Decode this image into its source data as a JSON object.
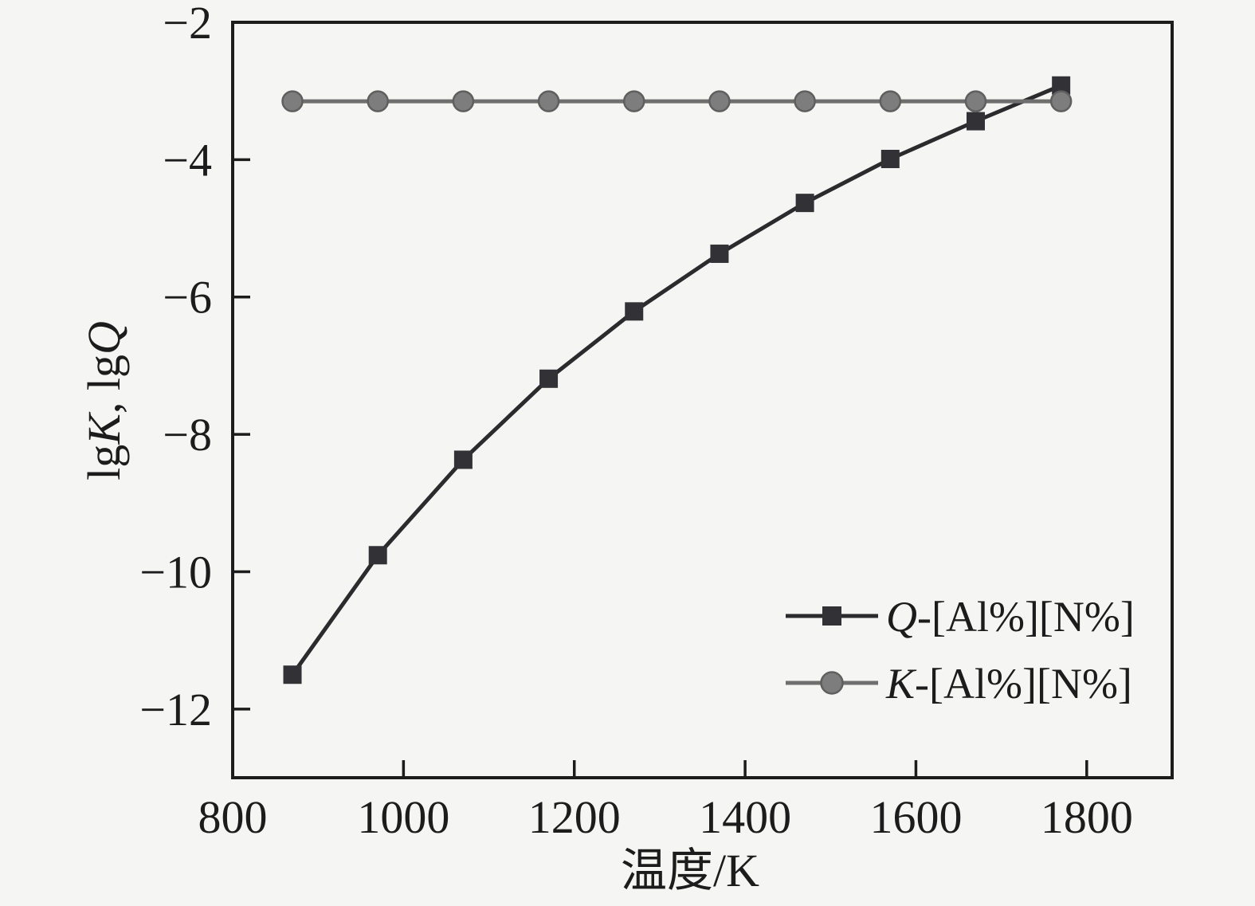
{
  "figure": {
    "kind": "scientific line chart",
    "background_color": "#f5f5f4",
    "frame_color": "#1c1c1c",
    "text_color": "#1c1c1c"
  },
  "chart_data": {
    "type": "line",
    "title": "",
    "xlabel": "温度/K",
    "ylabel": "lgK, lgQ",
    "ylabel_segments": [
      {
        "text": "lg",
        "italic": false
      },
      {
        "text": "K",
        "italic": true
      },
      {
        "text": ", lg",
        "italic": false
      },
      {
        "text": "Q",
        "italic": true
      }
    ],
    "xlim": [
      800,
      1900
    ],
    "ylim": [
      -13,
      -2
    ],
    "x_ticks": [
      800,
      1000,
      1200,
      1400,
      1600,
      1800
    ],
    "x_tick_labels": [
      "800",
      "1000",
      "1200",
      "1400",
      "1600",
      "1800"
    ],
    "y_ticks": [
      -2,
      -4,
      -6,
      -8,
      -10,
      -12
    ],
    "y_tick_labels": [
      "−2",
      "−4",
      "−6",
      "−8",
      "−10",
      "−12"
    ],
    "grid": false,
    "legend_position": "lower right",
    "x": [
      870,
      970,
      1070,
      1170,
      1270,
      1370,
      1470,
      1570,
      1670,
      1770
    ],
    "series": [
      {
        "name": "Q-[Al%][N%]",
        "name_segments": [
          {
            "text": "Q",
            "italic": true
          },
          {
            "text": "-[Al%][N%]",
            "italic": false
          }
        ],
        "marker": "square",
        "marker_color": "#323236",
        "line_color": "#2b2b2e",
        "values": [
          -11.5,
          -9.76,
          -8.37,
          -7.19,
          -6.21,
          -5.37,
          -4.63,
          -3.99,
          -3.44,
          -2.92
        ]
      },
      {
        "name": "K-[Al%][N%]",
        "name_segments": [
          {
            "text": "K",
            "italic": true
          },
          {
            "text": "-[Al%][N%]",
            "italic": false
          }
        ],
        "marker": "circle",
        "marker_color": "#7d7d7d",
        "marker_edge_color": "#5f5f5f",
        "line_color": "#6f6f6f",
        "values": [
          -3.15,
          -3.15,
          -3.15,
          -3.15,
          -3.15,
          -3.15,
          -3.15,
          -3.15,
          -3.15,
          -3.15
        ]
      }
    ]
  }
}
